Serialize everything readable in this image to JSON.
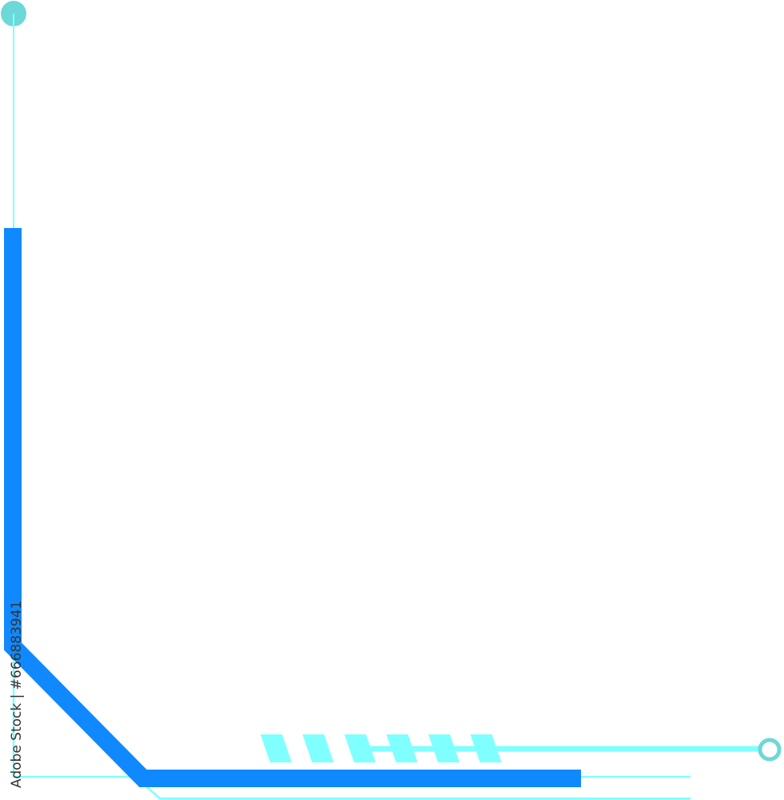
{
  "watermark": {
    "text": "Adobe Stock | #666883941"
  },
  "colors": {
    "primary_blue": "#1089ff",
    "light_cyan": "#80ffff",
    "teal_dot": "#6dd8d8",
    "background": "#ffffff"
  },
  "decor": {
    "stripe_count": 6
  }
}
